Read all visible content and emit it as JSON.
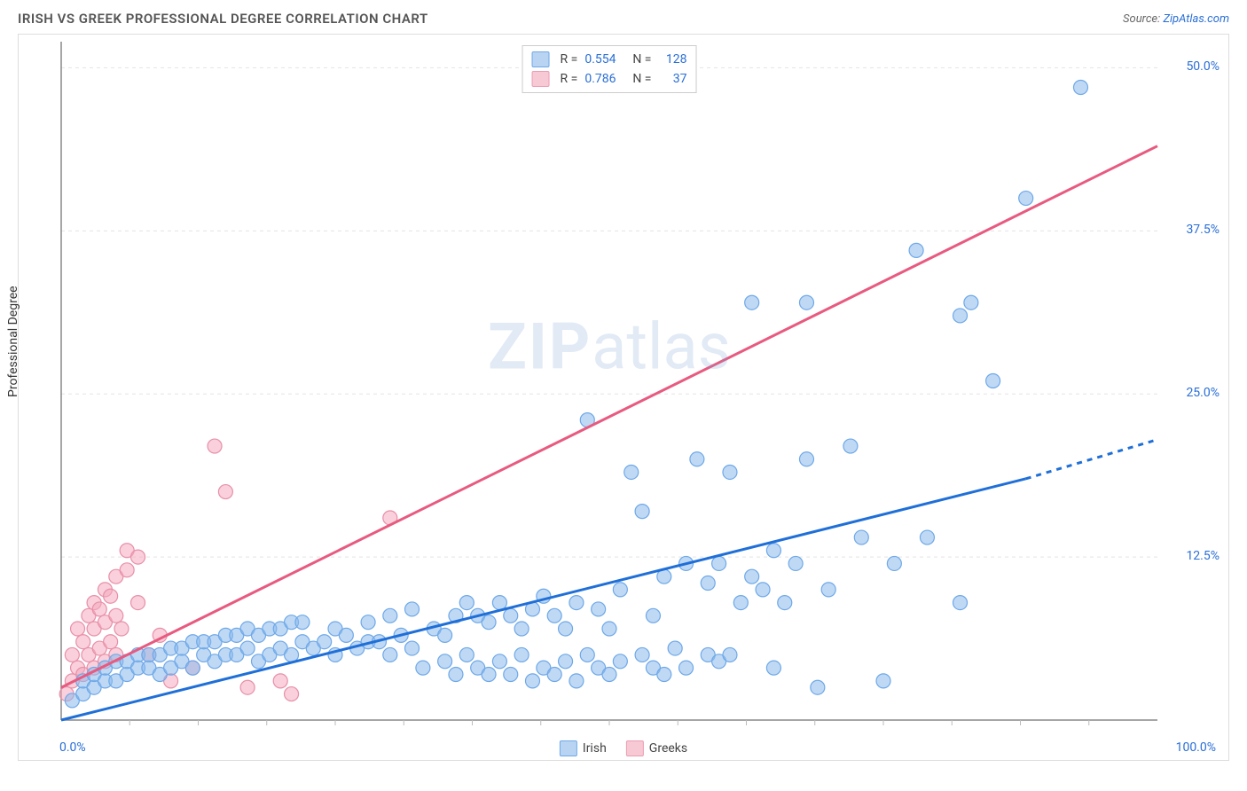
{
  "header": {
    "title": "IRISH VS GREEK PROFESSIONAL DEGREE CORRELATION CHART",
    "source_prefix": "Source: ",
    "source_link": "ZipAtlas.com"
  },
  "chart": {
    "type": "scatter",
    "ylabel": "Professional Degree",
    "xlim": [
      0,
      100
    ],
    "ylim": [
      0,
      52
    ],
    "x_ticks": [
      0,
      100
    ],
    "x_tick_labels": [
      "0.0%",
      "100.0%"
    ],
    "x_minor_ticks": [
      6.25,
      12.5,
      18.75,
      25,
      31.25,
      37.5,
      43.75,
      50,
      56.25,
      62.5,
      68.75,
      75,
      81.25,
      87.5,
      93.75
    ],
    "y_ticks": [
      12.5,
      25.0,
      37.5,
      50.0
    ],
    "y_tick_labels": [
      "12.5%",
      "25.0%",
      "37.5%",
      "50.0%"
    ],
    "grid_color": "#e4e4e4",
    "axis_color": "#888",
    "minor_tick_color": "#bbb",
    "background_color": "#ffffff",
    "watermark": {
      "bold": "ZIP",
      "rest": "atlas"
    },
    "legend_top": [
      {
        "swatch_fill": "#b9d4f2",
        "swatch_stroke": "#6ea8e8",
        "r_label": "R =",
        "r_value": "0.554",
        "n_label": "N =",
        "n_value": "128"
      },
      {
        "swatch_fill": "#f6c9d5",
        "swatch_stroke": "#ec9cb3",
        "r_label": "R =",
        "r_value": "0.786",
        "n_label": "N =",
        "n_value": "37"
      }
    ],
    "legend_bottom": [
      {
        "swatch_fill": "#b9d4f2",
        "swatch_stroke": "#6ea8e8",
        "label": "Irish"
      },
      {
        "swatch_fill": "#f6c9d5",
        "swatch_stroke": "#ec9cb3",
        "label": "Greeks"
      }
    ],
    "series": [
      {
        "name": "Irish",
        "marker_fill": "rgba(138,185,236,0.55)",
        "marker_stroke": "#6ea8e8",
        "marker_r": 8,
        "trend": {
          "color": "#1f6fd8",
          "width": 3,
          "x1": 0,
          "y1": 0,
          "x2": 88,
          "y2": 18.5,
          "dash_extend_x2": 100,
          "dash_extend_y2": 21.5
        },
        "points": [
          [
            1,
            1.5
          ],
          [
            2,
            2
          ],
          [
            2,
            3
          ],
          [
            3,
            2.5
          ],
          [
            3,
            3.5
          ],
          [
            4,
            3
          ],
          [
            4,
            4
          ],
          [
            5,
            3
          ],
          [
            5,
            4.5
          ],
          [
            6,
            3.5
          ],
          [
            6,
            4.5
          ],
          [
            7,
            4
          ],
          [
            7,
            5
          ],
          [
            8,
            4
          ],
          [
            8,
            5
          ],
          [
            9,
            3.5
          ],
          [
            9,
            5
          ],
          [
            10,
            4
          ],
          [
            10,
            5.5
          ],
          [
            11,
            4.5
          ],
          [
            11,
            5.5
          ],
          [
            12,
            4
          ],
          [
            12,
            6
          ],
          [
            13,
            5
          ],
          [
            13,
            6
          ],
          [
            14,
            4.5
          ],
          [
            14,
            6
          ],
          [
            15,
            5
          ],
          [
            15,
            6.5
          ],
          [
            16,
            5
          ],
          [
            16,
            6.5
          ],
          [
            17,
            5.5
          ],
          [
            17,
            7
          ],
          [
            18,
            4.5
          ],
          [
            18,
            6.5
          ],
          [
            19,
            5
          ],
          [
            19,
            7
          ],
          [
            20,
            5.5
          ],
          [
            20,
            7
          ],
          [
            21,
            5
          ],
          [
            21,
            7.5
          ],
          [
            22,
            6
          ],
          [
            22,
            7.5
          ],
          [
            23,
            5.5
          ],
          [
            24,
            6
          ],
          [
            25,
            5
          ],
          [
            25,
            7
          ],
          [
            26,
            6.5
          ],
          [
            27,
            5.5
          ],
          [
            28,
            6
          ],
          [
            28,
            7.5
          ],
          [
            29,
            6
          ],
          [
            30,
            5
          ],
          [
            30,
            8
          ],
          [
            31,
            6.5
          ],
          [
            32,
            5.5
          ],
          [
            32,
            8.5
          ],
          [
            33,
            4
          ],
          [
            34,
            7
          ],
          [
            35,
            4.5
          ],
          [
            35,
            6.5
          ],
          [
            36,
            3.5
          ],
          [
            36,
            8
          ],
          [
            37,
            5
          ],
          [
            37,
            9
          ],
          [
            38,
            4
          ],
          [
            38,
            8
          ],
          [
            39,
            3.5
          ],
          [
            39,
            7.5
          ],
          [
            40,
            4.5
          ],
          [
            40,
            9
          ],
          [
            41,
            3.5
          ],
          [
            41,
            8
          ],
          [
            42,
            5
          ],
          [
            42,
            7
          ],
          [
            43,
            3
          ],
          [
            43,
            8.5
          ],
          [
            44,
            4
          ],
          [
            44,
            9.5
          ],
          [
            45,
            3.5
          ],
          [
            45,
            8
          ],
          [
            46,
            4.5
          ],
          [
            46,
            7
          ],
          [
            47,
            3
          ],
          [
            47,
            9
          ],
          [
            48,
            5
          ],
          [
            48,
            23
          ],
          [
            49,
            4
          ],
          [
            49,
            8.5
          ],
          [
            50,
            3.5
          ],
          [
            50,
            7
          ],
          [
            51,
            4.5
          ],
          [
            51,
            10
          ],
          [
            52,
            19
          ],
          [
            53,
            5
          ],
          [
            53,
            16
          ],
          [
            54,
            4
          ],
          [
            54,
            8
          ],
          [
            55,
            3.5
          ],
          [
            55,
            11
          ],
          [
            56,
            5.5
          ],
          [
            57,
            4
          ],
          [
            57,
            12
          ],
          [
            58,
            20
          ],
          [
            59,
            5
          ],
          [
            59,
            10.5
          ],
          [
            60,
            4.5
          ],
          [
            60,
            12
          ],
          [
            61,
            5
          ],
          [
            61,
            19
          ],
          [
            62,
            9
          ],
          [
            63,
            11
          ],
          [
            63,
            32
          ],
          [
            64,
            10
          ],
          [
            65,
            4
          ],
          [
            65,
            13
          ],
          [
            66,
            9
          ],
          [
            67,
            12
          ],
          [
            68,
            32
          ],
          [
            68,
            20
          ],
          [
            69,
            2.5
          ],
          [
            70,
            10
          ],
          [
            72,
            21
          ],
          [
            73,
            14
          ],
          [
            75,
            3
          ],
          [
            76,
            12
          ],
          [
            78,
            36
          ],
          [
            79,
            14
          ],
          [
            82,
            9
          ],
          [
            82,
            31
          ],
          [
            83,
            32
          ],
          [
            85,
            26
          ],
          [
            88,
            40
          ],
          [
            93,
            48.5
          ]
        ]
      },
      {
        "name": "Greeks",
        "marker_fill": "rgba(244,170,190,0.55)",
        "marker_stroke": "#e88fa9",
        "marker_r": 8,
        "trend": {
          "color": "#e85a7f",
          "width": 3,
          "x1": 0,
          "y1": 2.5,
          "x2": 100,
          "y2": 44
        },
        "points": [
          [
            0.5,
            2
          ],
          [
            1,
            3
          ],
          [
            1,
            5
          ],
          [
            1.5,
            4
          ],
          [
            1.5,
            7
          ],
          [
            2,
            3.5
          ],
          [
            2,
            6
          ],
          [
            2.5,
            5
          ],
          [
            2.5,
            8
          ],
          [
            3,
            4
          ],
          [
            3,
            7
          ],
          [
            3,
            9
          ],
          [
            3.5,
            5.5
          ],
          [
            3.5,
            8.5
          ],
          [
            4,
            4.5
          ],
          [
            4,
            7.5
          ],
          [
            4,
            10
          ],
          [
            4.5,
            6
          ],
          [
            4.5,
            9.5
          ],
          [
            5,
            5
          ],
          [
            5,
            8
          ],
          [
            5,
            11
          ],
          [
            5.5,
            7
          ],
          [
            6,
            11.5
          ],
          [
            6,
            13
          ],
          [
            7,
            9
          ],
          [
            7,
            12.5
          ],
          [
            8,
            5
          ],
          [
            9,
            6.5
          ],
          [
            10,
            3
          ],
          [
            12,
            4
          ],
          [
            14,
            21
          ],
          [
            15,
            17.5
          ],
          [
            17,
            2.5
          ],
          [
            20,
            3
          ],
          [
            21,
            2
          ],
          [
            30,
            15.5
          ]
        ]
      }
    ]
  }
}
